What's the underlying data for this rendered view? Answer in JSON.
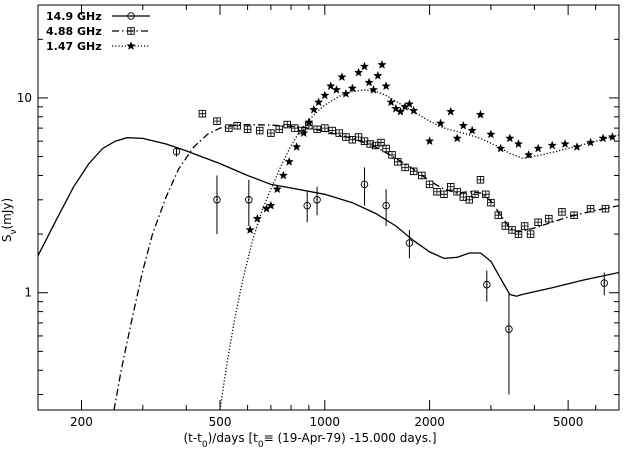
{
  "chart_data": {
    "type": "scatter",
    "title": "",
    "xlabel": "(t-t0)/days [t0= (19-Apr-79) -15.000 days.]",
    "xlabel_main": "(t-t",
    "xlabel_sub": "0",
    "xlabel_mid": ")/days  [t",
    "xlabel_sub2": "0",
    "xlabel_equiv": "≡",
    "xlabel_tail": " (19-Apr-79) -15.000 days.]",
    "ylabel": "Sν(mJy)",
    "ylabel_main": "S",
    "ylabel_sub": "ν",
    "ylabel_tail": "(mJy)",
    "x_scale": "log",
    "y_scale": "log",
    "xlim": [
      150,
      7000
    ],
    "ylim": [
      0.25,
      30
    ],
    "x_ticks": [
      200,
      500,
      1000,
      2000,
      5000
    ],
    "x_tick_labels": [
      "200",
      "500",
      "1000",
      "2000",
      "5000"
    ],
    "y_ticks": [
      1,
      10
    ],
    "y_tick_labels": [
      "1",
      "10"
    ],
    "legend_position": "top-left",
    "series": [
      {
        "name": "14.9 GHz",
        "marker": "circle-dot",
        "line_style": "solid",
        "points": [
          {
            "x": 375,
            "y": 5.3,
            "err": 0.3
          },
          {
            "x": 490,
            "y": 3.0,
            "err": 1.0
          },
          {
            "x": 605,
            "y": 3.0,
            "err": 0.8
          },
          {
            "x": 890,
            "y": 2.8,
            "err": 0.5
          },
          {
            "x": 950,
            "y": 3.0,
            "err": 0.5
          },
          {
            "x": 1300,
            "y": 3.6,
            "err": 0.8
          },
          {
            "x": 1500,
            "y": 2.8,
            "err": 0.6
          },
          {
            "x": 1750,
            "y": 1.8,
            "err": 0.3
          },
          {
            "x": 2920,
            "y": 1.1,
            "err": 0.2
          },
          {
            "x": 3380,
            "y": 0.65,
            "err": 0.35
          },
          {
            "x": 6350,
            "y": 1.12,
            "err": 0.15
          }
        ],
        "model": [
          {
            "x": 150,
            "y": 1.55
          },
          {
            "x": 170,
            "y": 2.4
          },
          {
            "x": 190,
            "y": 3.5
          },
          {
            "x": 210,
            "y": 4.6
          },
          {
            "x": 230,
            "y": 5.5
          },
          {
            "x": 250,
            "y": 6.0
          },
          {
            "x": 270,
            "y": 6.25
          },
          {
            "x": 300,
            "y": 6.2
          },
          {
            "x": 350,
            "y": 5.8
          },
          {
            "x": 400,
            "y": 5.35
          },
          {
            "x": 500,
            "y": 4.6
          },
          {
            "x": 600,
            "y": 4.0
          },
          {
            "x": 700,
            "y": 3.6
          },
          {
            "x": 800,
            "y": 3.45
          },
          {
            "x": 1000,
            "y": 3.2
          },
          {
            "x": 1200,
            "y": 2.9
          },
          {
            "x": 1400,
            "y": 2.55
          },
          {
            "x": 1600,
            "y": 2.2
          },
          {
            "x": 1800,
            "y": 1.85
          },
          {
            "x": 2000,
            "y": 1.62
          },
          {
            "x": 2200,
            "y": 1.5
          },
          {
            "x": 2400,
            "y": 1.52
          },
          {
            "x": 2600,
            "y": 1.6
          },
          {
            "x": 2800,
            "y": 1.6
          },
          {
            "x": 3000,
            "y": 1.45
          },
          {
            "x": 3200,
            "y": 1.18
          },
          {
            "x": 3400,
            "y": 0.98
          },
          {
            "x": 3550,
            "y": 0.96
          },
          {
            "x": 3700,
            "y": 0.98
          },
          {
            "x": 4500,
            "y": 1.06
          },
          {
            "x": 5500,
            "y": 1.16
          },
          {
            "x": 7000,
            "y": 1.27
          }
        ]
      },
      {
        "name": "4.88 GHz",
        "marker": "square-cross",
        "line_style": "dash-dot",
        "points": [
          {
            "x": 445,
            "y": 8.3
          },
          {
            "x": 490,
            "y": 7.6
          },
          {
            "x": 530,
            "y": 7.0
          },
          {
            "x": 560,
            "y": 7.2
          },
          {
            "x": 600,
            "y": 6.9
          },
          {
            "x": 650,
            "y": 6.8
          },
          {
            "x": 700,
            "y": 6.6
          },
          {
            "x": 740,
            "y": 6.9
          },
          {
            "x": 780,
            "y": 7.3
          },
          {
            "x": 820,
            "y": 7.0
          },
          {
            "x": 860,
            "y": 6.8
          },
          {
            "x": 900,
            "y": 7.2
          },
          {
            "x": 950,
            "y": 6.9
          },
          {
            "x": 1000,
            "y": 7.0
          },
          {
            "x": 1050,
            "y": 6.8
          },
          {
            "x": 1100,
            "y": 6.6
          },
          {
            "x": 1150,
            "y": 6.3
          },
          {
            "x": 1200,
            "y": 6.1
          },
          {
            "x": 1250,
            "y": 6.3
          },
          {
            "x": 1300,
            "y": 6.0
          },
          {
            "x": 1350,
            "y": 5.8
          },
          {
            "x": 1400,
            "y": 5.7
          },
          {
            "x": 1450,
            "y": 5.9
          },
          {
            "x": 1500,
            "y": 5.5
          },
          {
            "x": 1560,
            "y": 5.1
          },
          {
            "x": 1620,
            "y": 4.7
          },
          {
            "x": 1700,
            "y": 4.4
          },
          {
            "x": 1800,
            "y": 4.2
          },
          {
            "x": 1900,
            "y": 4.0
          },
          {
            "x": 2000,
            "y": 3.6
          },
          {
            "x": 2100,
            "y": 3.3
          },
          {
            "x": 2200,
            "y": 3.2
          },
          {
            "x": 2300,
            "y": 3.5
          },
          {
            "x": 2400,
            "y": 3.3
          },
          {
            "x": 2500,
            "y": 3.1
          },
          {
            "x": 2600,
            "y": 3.0
          },
          {
            "x": 2700,
            "y": 3.2
          },
          {
            "x": 2800,
            "y": 3.8
          },
          {
            "x": 2900,
            "y": 3.2
          },
          {
            "x": 3000,
            "y": 2.9
          },
          {
            "x": 3150,
            "y": 2.5
          },
          {
            "x": 3300,
            "y": 2.2
          },
          {
            "x": 3450,
            "y": 2.1
          },
          {
            "x": 3600,
            "y": 2.0
          },
          {
            "x": 3750,
            "y": 2.2
          },
          {
            "x": 3900,
            "y": 2.0
          },
          {
            "x": 4100,
            "y": 2.3
          },
          {
            "x": 4400,
            "y": 2.4
          },
          {
            "x": 4800,
            "y": 2.6
          },
          {
            "x": 5200,
            "y": 2.5
          },
          {
            "x": 5800,
            "y": 2.7
          },
          {
            "x": 6400,
            "y": 2.7
          }
        ],
        "model": [
          {
            "x": 248,
            "y": 0.25
          },
          {
            "x": 260,
            "y": 0.4
          },
          {
            "x": 280,
            "y": 0.75
          },
          {
            "x": 300,
            "y": 1.3
          },
          {
            "x": 320,
            "y": 2.0
          },
          {
            "x": 350,
            "y": 3.1
          },
          {
            "x": 380,
            "y": 4.3
          },
          {
            "x": 420,
            "y": 5.6
          },
          {
            "x": 460,
            "y": 6.5
          },
          {
            "x": 500,
            "y": 7.0
          },
          {
            "x": 550,
            "y": 7.25
          },
          {
            "x": 600,
            "y": 7.3
          },
          {
            "x": 700,
            "y": 7.25
          },
          {
            "x": 800,
            "y": 7.15
          },
          {
            "x": 900,
            "y": 7.0
          },
          {
            "x": 1000,
            "y": 6.75
          },
          {
            "x": 1200,
            "y": 6.2
          },
          {
            "x": 1400,
            "y": 5.6
          },
          {
            "x": 1600,
            "y": 4.9
          },
          {
            "x": 1800,
            "y": 4.3
          },
          {
            "x": 2000,
            "y": 3.75
          },
          {
            "x": 2200,
            "y": 3.4
          },
          {
            "x": 2400,
            "y": 3.25
          },
          {
            "x": 2600,
            "y": 3.3
          },
          {
            "x": 2800,
            "y": 3.25
          },
          {
            "x": 3000,
            "y": 2.95
          },
          {
            "x": 3200,
            "y": 2.5
          },
          {
            "x": 3400,
            "y": 2.15
          },
          {
            "x": 3600,
            "y": 2.05
          },
          {
            "x": 4000,
            "y": 2.15
          },
          {
            "x": 5000,
            "y": 2.45
          },
          {
            "x": 6000,
            "y": 2.65
          },
          {
            "x": 7000,
            "y": 2.8
          }
        ]
      },
      {
        "name": "1.47 GHz",
        "marker": "star",
        "line_style": "dotted",
        "points": [
          {
            "x": 610,
            "y": 2.1
          },
          {
            "x": 640,
            "y": 2.4
          },
          {
            "x": 680,
            "y": 2.7
          },
          {
            "x": 700,
            "y": 2.8
          },
          {
            "x": 730,
            "y": 3.4
          },
          {
            "x": 760,
            "y": 4.0
          },
          {
            "x": 790,
            "y": 4.7
          },
          {
            "x": 830,
            "y": 5.6
          },
          {
            "x": 870,
            "y": 6.6
          },
          {
            "x": 900,
            "y": 7.5
          },
          {
            "x": 930,
            "y": 8.7
          },
          {
            "x": 960,
            "y": 9.5
          },
          {
            "x": 1000,
            "y": 10.3
          },
          {
            "x": 1040,
            "y": 11.5
          },
          {
            "x": 1080,
            "y": 11.0
          },
          {
            "x": 1120,
            "y": 12.8
          },
          {
            "x": 1150,
            "y": 10.5
          },
          {
            "x": 1200,
            "y": 11.2
          },
          {
            "x": 1250,
            "y": 13.5
          },
          {
            "x": 1300,
            "y": 14.5
          },
          {
            "x": 1340,
            "y": 12.0
          },
          {
            "x": 1380,
            "y": 11.0
          },
          {
            "x": 1420,
            "y": 13.0
          },
          {
            "x": 1460,
            "y": 14.8
          },
          {
            "x": 1500,
            "y": 11.5
          },
          {
            "x": 1550,
            "y": 9.5
          },
          {
            "x": 1600,
            "y": 8.8
          },
          {
            "x": 1650,
            "y": 8.5
          },
          {
            "x": 1700,
            "y": 9.0
          },
          {
            "x": 1750,
            "y": 9.3
          },
          {
            "x": 1800,
            "y": 8.6
          },
          {
            "x": 2000,
            "y": 6.0
          },
          {
            "x": 2150,
            "y": 7.4
          },
          {
            "x": 2300,
            "y": 8.5
          },
          {
            "x": 2400,
            "y": 6.2
          },
          {
            "x": 2500,
            "y": 7.2
          },
          {
            "x": 2650,
            "y": 6.8
          },
          {
            "x": 2800,
            "y": 8.2
          },
          {
            "x": 3000,
            "y": 6.5
          },
          {
            "x": 3200,
            "y": 5.5
          },
          {
            "x": 3400,
            "y": 6.2
          },
          {
            "x": 3600,
            "y": 5.8
          },
          {
            "x": 3850,
            "y": 5.1
          },
          {
            "x": 4100,
            "y": 5.5
          },
          {
            "x": 4500,
            "y": 5.7
          },
          {
            "x": 4900,
            "y": 5.8
          },
          {
            "x": 5300,
            "y": 5.6
          },
          {
            "x": 5800,
            "y": 5.9
          },
          {
            "x": 6300,
            "y": 6.2
          },
          {
            "x": 6700,
            "y": 6.3
          }
        ],
        "model": [
          {
            "x": 500,
            "y": 0.25
          },
          {
            "x": 520,
            "y": 0.4
          },
          {
            "x": 550,
            "y": 0.72
          },
          {
            "x": 580,
            "y": 1.15
          },
          {
            "x": 620,
            "y": 1.85
          },
          {
            "x": 660,
            "y": 2.65
          },
          {
            "x": 700,
            "y": 3.4
          },
          {
            "x": 750,
            "y": 4.5
          },
          {
            "x": 800,
            "y": 5.7
          },
          {
            "x": 850,
            "y": 6.8
          },
          {
            "x": 900,
            "y": 7.7
          },
          {
            "x": 950,
            "y": 8.5
          },
          {
            "x": 1000,
            "y": 9.2
          },
          {
            "x": 1100,
            "y": 10.2
          },
          {
            "x": 1200,
            "y": 10.8
          },
          {
            "x": 1300,
            "y": 11.0
          },
          {
            "x": 1400,
            "y": 10.8
          },
          {
            "x": 1500,
            "y": 10.3
          },
          {
            "x": 1600,
            "y": 9.6
          },
          {
            "x": 1800,
            "y": 8.5
          },
          {
            "x": 2000,
            "y": 7.6
          },
          {
            "x": 2200,
            "y": 7.0
          },
          {
            "x": 2500,
            "y": 6.6
          },
          {
            "x": 2800,
            "y": 6.2
          },
          {
            "x": 3100,
            "y": 5.7
          },
          {
            "x": 3400,
            "y": 5.2
          },
          {
            "x": 3700,
            "y": 4.9
          },
          {
            "x": 4200,
            "y": 5.1
          },
          {
            "x": 5000,
            "y": 5.5
          },
          {
            "x": 6000,
            "y": 6.0
          },
          {
            "x": 7000,
            "y": 6.45
          }
        ]
      }
    ]
  }
}
